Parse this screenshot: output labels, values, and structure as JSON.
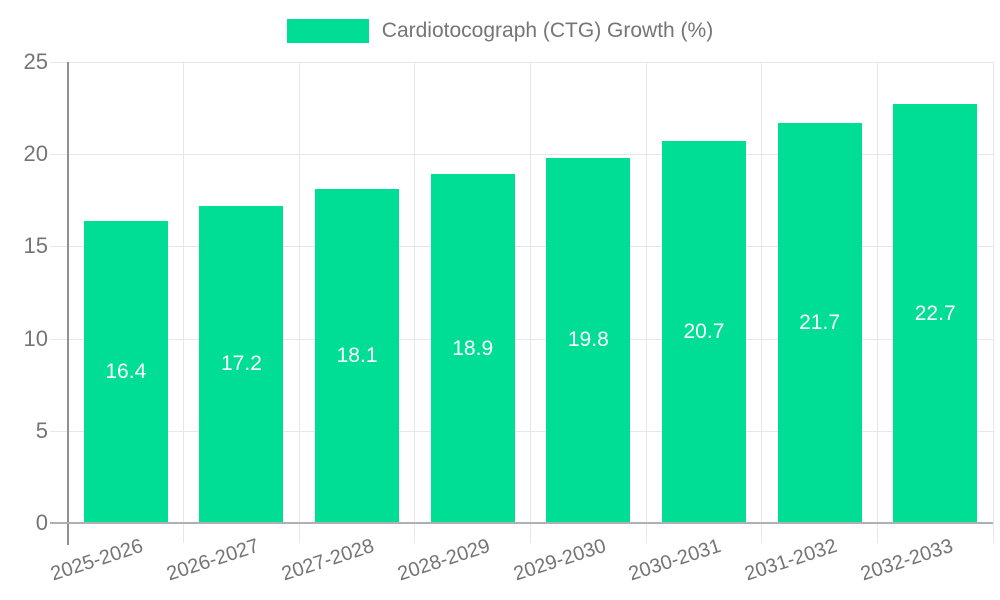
{
  "chart_data": {
    "type": "bar",
    "legend_label": "Cardiotocograph (CTG) Growth (%)",
    "legend_position": "top",
    "categories": [
      "2025-2026",
      "2026-2027",
      "2027-2028",
      "2028-2029",
      "2029-2030",
      "2030-2031",
      "2031-2032",
      "2032-2033"
    ],
    "values": [
      16.4,
      17.2,
      18.1,
      18.9,
      19.8,
      20.7,
      21.7,
      22.7
    ],
    "value_labels": [
      "16.4",
      "17.2",
      "18.1",
      "18.9",
      "19.8",
      "20.7",
      "21.7",
      "22.7"
    ],
    "xlabel": "",
    "ylabel": "",
    "ylim": [
      0,
      25
    ],
    "yticks": [
      0,
      5,
      10,
      15,
      20,
      25
    ],
    "grid": true,
    "colors": {
      "bar": "#00DE96",
      "bar_label": "#FFFFFF",
      "axis_text": "#757575",
      "grid_line": "#E7E7E7",
      "axis_line": "#909090",
      "baseline": "#B0B0B0",
      "background": "#FFFFFF"
    }
  }
}
